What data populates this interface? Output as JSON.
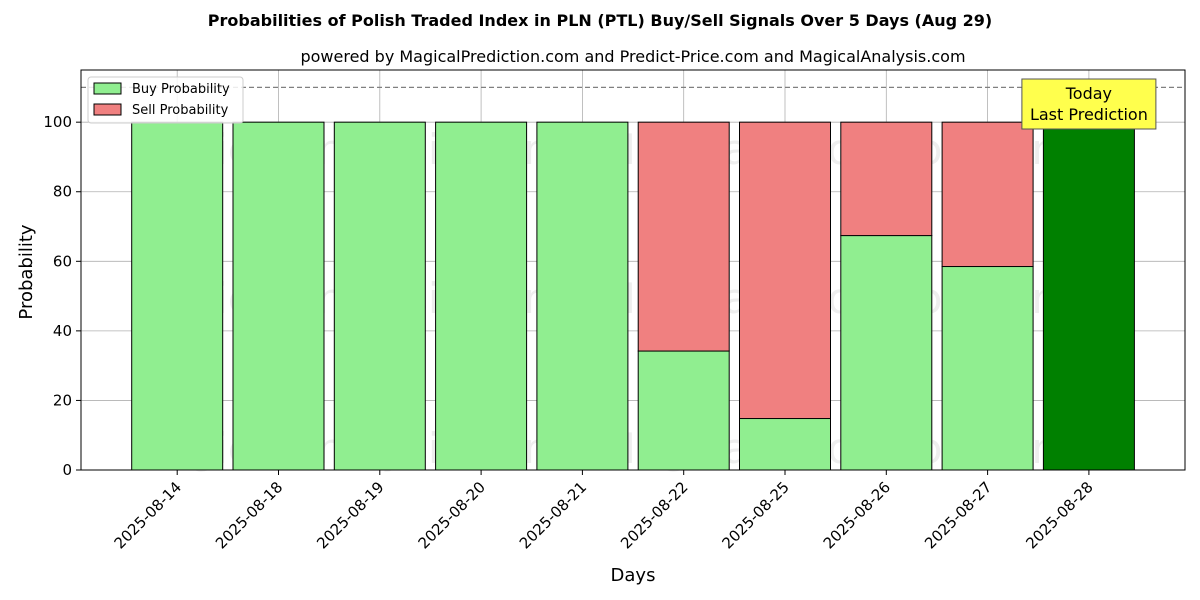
{
  "chart_data": {
    "type": "bar",
    "stacked": true,
    "title": "Probabilities of Polish Traded Index in PLN (PTL) Buy/Sell Signals Over 5 Days (Aug 29)",
    "subtitle": "powered by MagicalPrediction.com and Predict-Price.com and MagicalAnalysis.com",
    "xlabel": "Days",
    "ylabel": "Probability",
    "ylim": [
      0,
      115
    ],
    "yticks": [
      "0",
      "20",
      "40",
      "60",
      "80",
      "100"
    ],
    "grid": true,
    "legend_position": "top-left",
    "reference_line": 110,
    "categories": [
      "2025-08-14",
      "2025-08-18",
      "2025-08-19",
      "2025-08-20",
      "2025-08-21",
      "2025-08-22",
      "2025-08-25",
      "2025-08-26",
      "2025-08-27",
      "2025-08-28"
    ],
    "series": [
      {
        "name": "Buy Probability",
        "color": "#90ee90",
        "values": [
          100,
          100,
          100,
          100,
          100,
          34.2,
          14.8,
          67.4,
          58.5,
          100
        ]
      },
      {
        "name": "Sell Probability",
        "color": "#f08080",
        "values": [
          0,
          0,
          0,
          0,
          0,
          65.8,
          85.2,
          32.6,
          41.5,
          0
        ]
      }
    ],
    "highlight": {
      "index": 9,
      "color": "#008000"
    },
    "annotation": {
      "lines": [
        "Today",
        "Last Prediction"
      ],
      "background": "#ffff4d"
    },
    "watermarks": [
      "MagicalAnalysis.com",
      "MagicalPrediction.com"
    ]
  }
}
